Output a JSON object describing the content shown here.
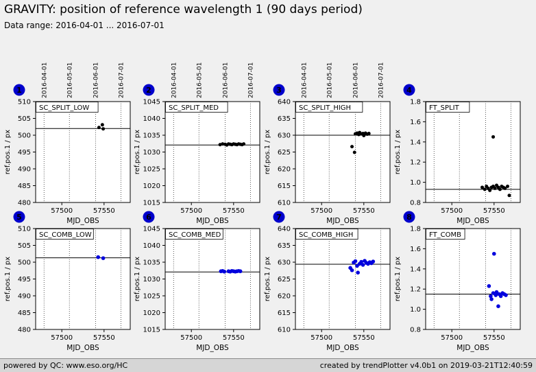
{
  "header": {
    "title": "GRAVITY: position of reference wavelength 1 (90 days period)",
    "subtitle": "Data range: 2016-04-01 ... 2016-07-01"
  },
  "footer": {
    "left": "powered by QC: www.eso.org/HC",
    "right": "created by trendPlotter v4.0b1 on 2019-03-21T12:40:59"
  },
  "colors": {
    "accent_blue": "#0000cc",
    "point_black": "#000000",
    "point_blue": "#0000dd",
    "page_bg": "#f0f0f0",
    "footer_bg": "#d6d6d6",
    "plot_bg": "#ffffff"
  },
  "date_columns": {
    "labels": [
      "2016-04-01",
      "2016-05-01",
      "2016-06-01",
      "2016-07-01"
    ],
    "mjd": [
      57479,
      57509,
      57540,
      57570
    ],
    "shown_above_columns": [
      0,
      1,
      2
    ]
  },
  "chart_data": [
    {
      "badge": "1",
      "label": "SC_SPLIT_LOW",
      "type": "scatter",
      "xlabel": "MJD_OBS",
      "ylabel": "ref.pos.1 / px",
      "xlim": [
        57469,
        57581
      ],
      "xticks": [
        "57500",
        "57550"
      ],
      "ylim": [
        480,
        510
      ],
      "yticks": [
        "480",
        "485",
        "490",
        "495",
        "500",
        "505",
        "510"
      ],
      "ref_line": 502.0,
      "point_color": "#000000",
      "point_radius": 2.5,
      "points": [
        [
          57544,
          502.3
        ],
        [
          57548,
          503.1
        ],
        [
          57549,
          501.9
        ]
      ]
    },
    {
      "badge": "2",
      "label": "SC_SPLIT_MED",
      "type": "scatter",
      "xlabel": "MJD_OBS",
      "ylabel": "ref.pos.1 / px",
      "xlim": [
        57469,
        57581
      ],
      "xticks": [
        "57500",
        "57550"
      ],
      "ylim": [
        1015,
        1045
      ],
      "yticks": [
        "1015",
        "1020",
        "1025",
        "1030",
        "1035",
        "1040",
        "1045"
      ],
      "ref_line": 1032.1,
      "point_color": "#000000",
      "point_radius": 2.5,
      "points": [
        [
          57534,
          1032.2
        ],
        [
          57537,
          1032.4
        ],
        [
          57540,
          1032.3
        ],
        [
          57542,
          1032.1
        ],
        [
          57544,
          1032.4
        ],
        [
          57546,
          1032.3
        ],
        [
          57548,
          1032.2
        ],
        [
          57550,
          1032.4
        ],
        [
          57552,
          1032.3
        ],
        [
          57554,
          1032.2
        ],
        [
          57556,
          1032.4
        ],
        [
          57558,
          1032.3
        ],
        [
          57560,
          1032.2
        ],
        [
          57562,
          1032.4
        ]
      ]
    },
    {
      "badge": "3",
      "label": "SC_SPLIT_HIGH",
      "type": "scatter",
      "xlabel": "MJD_OBS",
      "ylabel": "ref.pos.1 / px",
      "xlim": [
        57469,
        57581
      ],
      "xticks": [
        "57500",
        "57550"
      ],
      "ylim": [
        610,
        640
      ],
      "yticks": [
        "610",
        "615",
        "620",
        "625",
        "630",
        "635",
        "640"
      ],
      "ref_line": 630.0,
      "point_color": "#000000",
      "point_radius": 2.5,
      "points": [
        [
          57536,
          626.6
        ],
        [
          57539,
          624.9
        ],
        [
          57540,
          630.4
        ],
        [
          57542,
          630.6
        ],
        [
          57544,
          630.2
        ],
        [
          57545,
          630.8
        ],
        [
          57547,
          630.4
        ],
        [
          57549,
          630.5
        ],
        [
          57550,
          629.9
        ],
        [
          57552,
          630.6
        ],
        [
          57554,
          630.3
        ],
        [
          57556,
          630.5
        ]
      ]
    },
    {
      "badge": "4",
      "label": "FT_SPLIT",
      "type": "scatter",
      "xlabel": "MJD_OBS",
      "ylabel": "ref.pos.1 / px",
      "xlim": [
        57469,
        57581
      ],
      "xticks": [
        "57500",
        "57550"
      ],
      "ylim": [
        0.8,
        1.8
      ],
      "yticks": [
        "0.8",
        "1.0",
        "1.2",
        "1.4",
        "1.6",
        "1.8"
      ],
      "ref_line": 0.93,
      "point_color": "#000000",
      "point_radius": 2.5,
      "points": [
        [
          57536,
          0.95
        ],
        [
          57539,
          0.93
        ],
        [
          57541,
          0.96
        ],
        [
          57543,
          0.94
        ],
        [
          57545,
          0.92
        ],
        [
          57547,
          0.95
        ],
        [
          57549,
          1.45
        ],
        [
          57549,
          0.96
        ],
        [
          57551,
          0.94
        ],
        [
          57553,
          0.97
        ],
        [
          57555,
          0.95
        ],
        [
          57557,
          0.93
        ],
        [
          57559,
          0.96
        ],
        [
          57561,
          0.95
        ],
        [
          57563,
          0.94
        ],
        [
          57566,
          0.96
        ],
        [
          57568,
          0.87
        ]
      ]
    },
    {
      "badge": "5",
      "label": "SC_COMB_LOW",
      "type": "scatter",
      "xlabel": "MJD_OBS",
      "ylabel": "ref.pos.1 / px",
      "xlim": [
        57469,
        57581
      ],
      "xticks": [
        "57500",
        "57550"
      ],
      "ylim": [
        480,
        510
      ],
      "yticks": [
        "480",
        "485",
        "490",
        "495",
        "500",
        "505",
        "510"
      ],
      "ref_line": 501.3,
      "point_color": "#0000dd",
      "point_radius": 2.8,
      "points": [
        [
          57543,
          501.5
        ],
        [
          57549,
          501.2
        ]
      ]
    },
    {
      "badge": "6",
      "label": "SC_COMB_MED",
      "type": "scatter",
      "xlabel": "MJD_OBS",
      "ylabel": "ref.pos.1 / px",
      "xlim": [
        57469,
        57581
      ],
      "xticks": [
        "57500",
        "57550"
      ],
      "ylim": [
        1015,
        1045
      ],
      "yticks": [
        "1015",
        "1020",
        "1025",
        "1030",
        "1035",
        "1040",
        "1045"
      ],
      "ref_line": 1032.1,
      "point_color": "#0000dd",
      "point_radius": 2.8,
      "points": [
        [
          57535,
          1032.3
        ],
        [
          57537,
          1032.4
        ],
        [
          57539,
          1032.2
        ],
        [
          57544,
          1032.3
        ],
        [
          57546,
          1032.2
        ],
        [
          57548,
          1032.4
        ],
        [
          57550,
          1032.3
        ],
        [
          57552,
          1032.2
        ],
        [
          57554,
          1032.3
        ],
        [
          57556,
          1032.4
        ],
        [
          57558,
          1032.3
        ]
      ]
    },
    {
      "badge": "7",
      "label": "SC_COMB_HIGH",
      "type": "scatter",
      "xlabel": "MJD_OBS",
      "ylabel": "ref.pos.1 / px",
      "xlim": [
        57469,
        57581
      ],
      "xticks": [
        "57500",
        "57550"
      ],
      "ylim": [
        610,
        640
      ],
      "yticks": [
        "610",
        "615",
        "620",
        "625",
        "630",
        "635",
        "640"
      ],
      "ref_line": 629.4,
      "point_color": "#0000dd",
      "point_radius": 2.8,
      "points": [
        [
          57534,
          628.3
        ],
        [
          57536,
          627.6
        ],
        [
          57538,
          629.9
        ],
        [
          57540,
          630.3
        ],
        [
          57542,
          628.9
        ],
        [
          57543,
          626.9
        ],
        [
          57545,
          629.5
        ],
        [
          57547,
          630.1
        ],
        [
          57549,
          629.2
        ],
        [
          57551,
          630.4
        ],
        [
          57553,
          629.8
        ],
        [
          57555,
          629.5
        ],
        [
          57557,
          630.0
        ],
        [
          57559,
          629.7
        ],
        [
          57561,
          630.2
        ]
      ]
    },
    {
      "badge": "8",
      "label": "FT_COMB",
      "type": "scatter",
      "xlabel": "MJD_OBS",
      "ylabel": "ref.pos.1 / px",
      "xlim": [
        57469,
        57581
      ],
      "xticks": [
        "57500",
        "57550"
      ],
      "ylim": [
        0.8,
        1.8
      ],
      "yticks": [
        "0.8",
        "1.0",
        "1.2",
        "1.4",
        "1.6",
        "1.8"
      ],
      "ref_line": 1.15,
      "point_color": "#0000dd",
      "point_radius": 2.8,
      "points": [
        [
          57544,
          1.23
        ],
        [
          57546,
          1.13
        ],
        [
          57547,
          1.1
        ],
        [
          57549,
          1.16
        ],
        [
          57550,
          1.55
        ],
        [
          57552,
          1.14
        ],
        [
          57553,
          1.17
        ],
        [
          57555,
          1.03
        ],
        [
          57556,
          1.15
        ],
        [
          57558,
          1.13
        ],
        [
          57560,
          1.16
        ],
        [
          57562,
          1.15
        ],
        [
          57564,
          1.14
        ]
      ]
    }
  ]
}
